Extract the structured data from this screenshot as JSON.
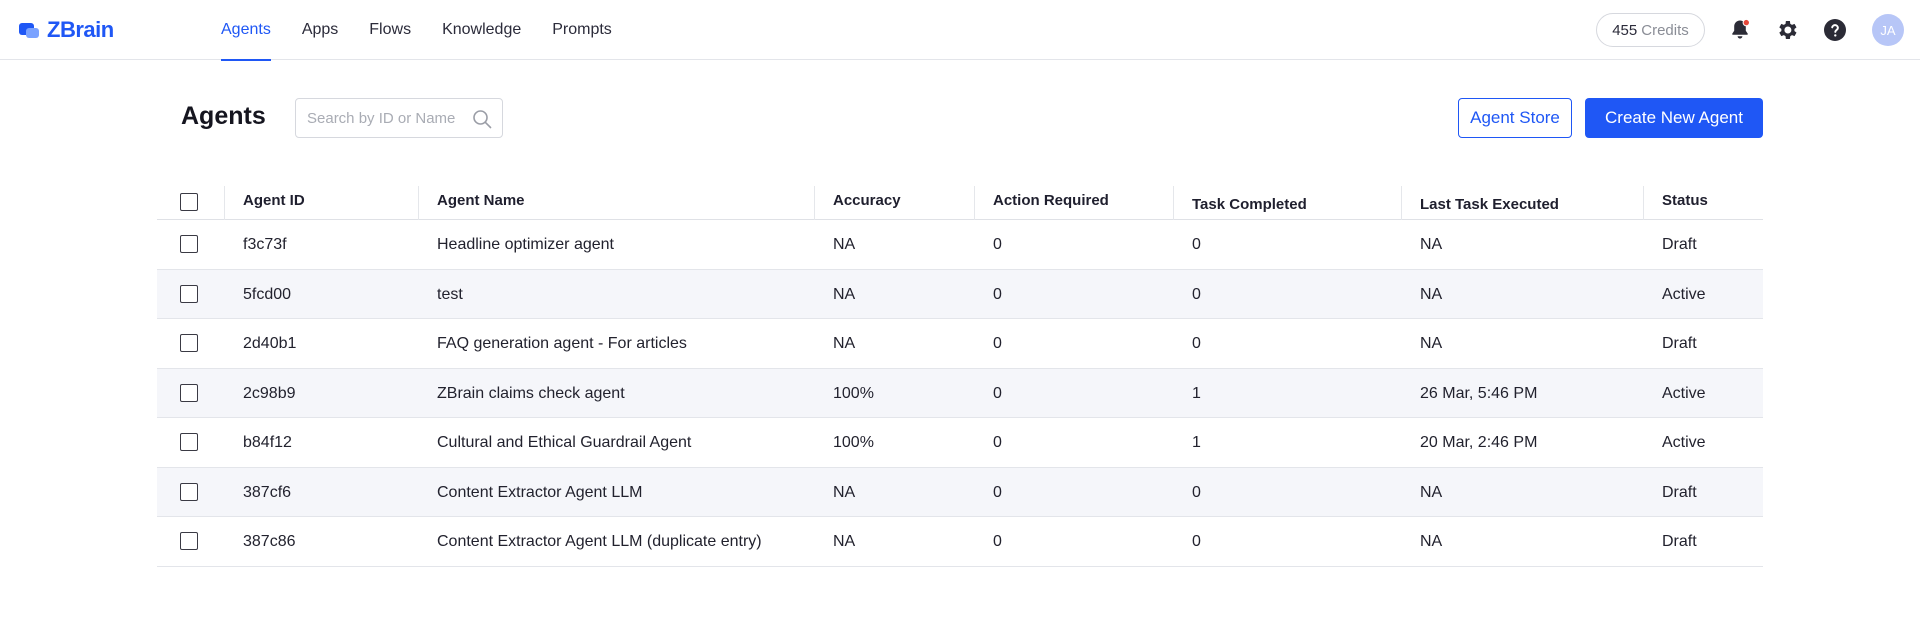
{
  "app": {
    "logo_text": "ZBrain",
    "accent": "#1f57f5"
  },
  "nav": {
    "items": [
      {
        "label": "Agents",
        "active": true
      },
      {
        "label": "Apps",
        "active": false
      },
      {
        "label": "Flows",
        "active": false
      },
      {
        "label": "Knowledge",
        "active": false
      },
      {
        "label": "Prompts",
        "active": false
      }
    ]
  },
  "header": {
    "credits_value": "455",
    "credits_label": "Credits",
    "avatar_initials": "JA",
    "notification_dot_color": "#e5483b"
  },
  "page": {
    "title": "Agents",
    "search_placeholder": "Search by ID or Name",
    "agent_store_label": "Agent Store",
    "create_label": "Create New Agent"
  },
  "table": {
    "columns": [
      "Agent ID",
      "Agent Name",
      "Accuracy",
      "Action Required",
      "Task Completed",
      "Last Task Executed",
      "Status"
    ],
    "rows": [
      [
        "f3c73f",
        "Headline optimizer agent",
        "NA",
        "0",
        "0",
        "NA",
        "Draft"
      ],
      [
        "5fcd00",
        "test",
        "NA",
        "0",
        "0",
        "NA",
        "Active"
      ],
      [
        "2d40b1",
        "FAQ generation agent - For articles",
        "NA",
        "0",
        "0",
        "NA",
        "Draft"
      ],
      [
        "2c98b9",
        "ZBrain claims check agent",
        "100%",
        "0",
        "1",
        "26 Mar, 5:46 PM",
        "Active"
      ],
      [
        "b84f12",
        "Cultural and Ethical Guardrail Agent",
        "100%",
        "0",
        "1",
        "20 Mar, 2:46 PM",
        "Active"
      ],
      [
        "387cf6",
        "Content Extractor Agent LLM",
        "NA",
        "0",
        "0",
        "NA",
        "Draft"
      ],
      [
        "387c86",
        "Content Extractor Agent LLM (duplicate entry)",
        "NA",
        "0",
        "0",
        "NA",
        "Draft"
      ]
    ]
  }
}
